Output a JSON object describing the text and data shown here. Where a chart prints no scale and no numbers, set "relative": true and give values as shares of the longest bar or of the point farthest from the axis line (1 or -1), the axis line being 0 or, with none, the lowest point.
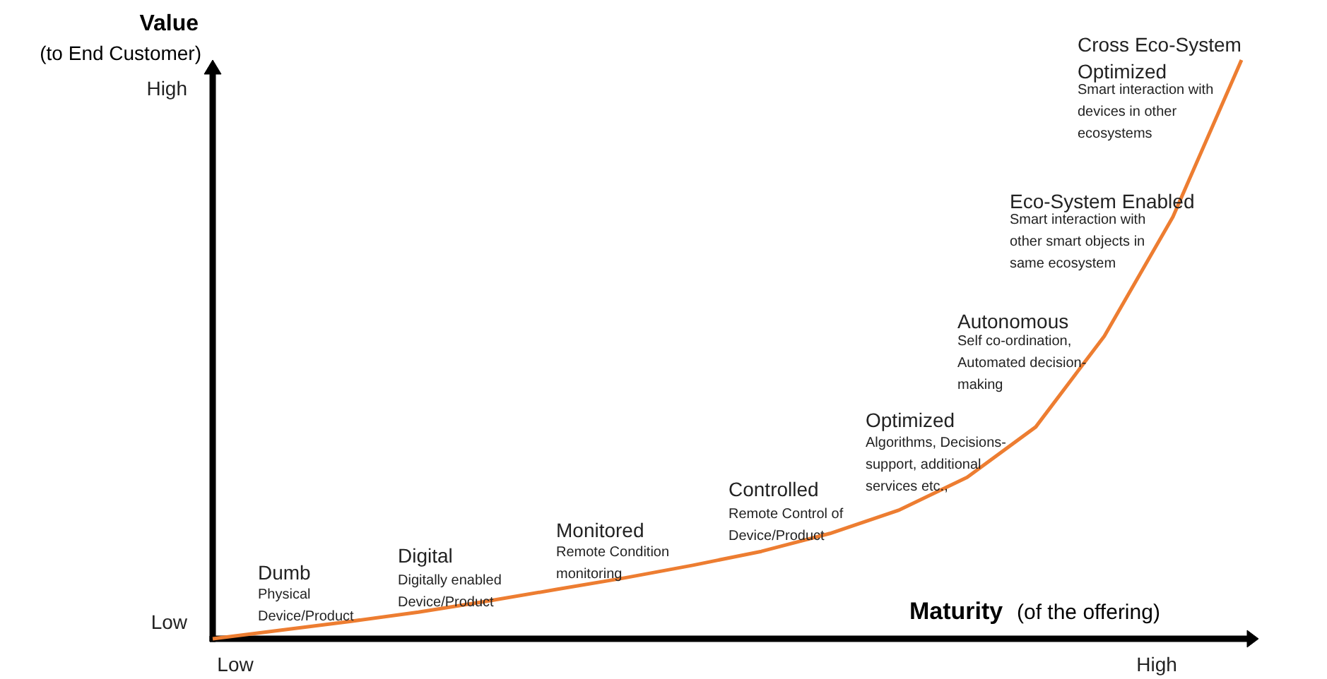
{
  "chart_data": {
    "type": "line",
    "relative": true,
    "xlabel": "Maturity (of the offering)",
    "ylabel": "Value\n(to End Customer)",
    "categories": [
      null,
      null,
      null,
      null,
      null,
      null,
      null,
      null,
      null,
      null,
      null,
      null,
      null,
      null,
      null,
      null
    ],
    "series": [
      {
        "color": "#ed7d31",
        "values": [
          0,
          0.015,
          0.03,
          0.046,
          0.065,
          0.085,
          0.105,
          0.127,
          0.151,
          0.182,
          0.222,
          0.279,
          0.366,
          0.523,
          0.729,
          1.0
        ]
      }
    ],
    "annotations": [
      "Low",
      "High",
      "Low",
      "High",
      "Dumb",
      "Physical\nDevice/Product",
      "Digital",
      "Digitally enabled\nDevice/Product",
      "Monitored",
      "Remote Condition\nmonitoring",
      "Controlled",
      "Remote Control of\nDevice/Product",
      "Optimized",
      "Algorithms, Decisions-\nsupport, additional\nservices etc.,",
      "Autonomous",
      "Self co-ordination,\nAutomated decision-\nmaking",
      "Eco-System Enabled",
      "Smart interaction with\nother smart objects in\nsame ecosystem",
      "Cross Eco-System\nOptimized",
      "Smart interaction with\ndevices in other\necosystems"
    ],
    "line_style": "solid",
    "marker": "none",
    "grid": false
  }
}
